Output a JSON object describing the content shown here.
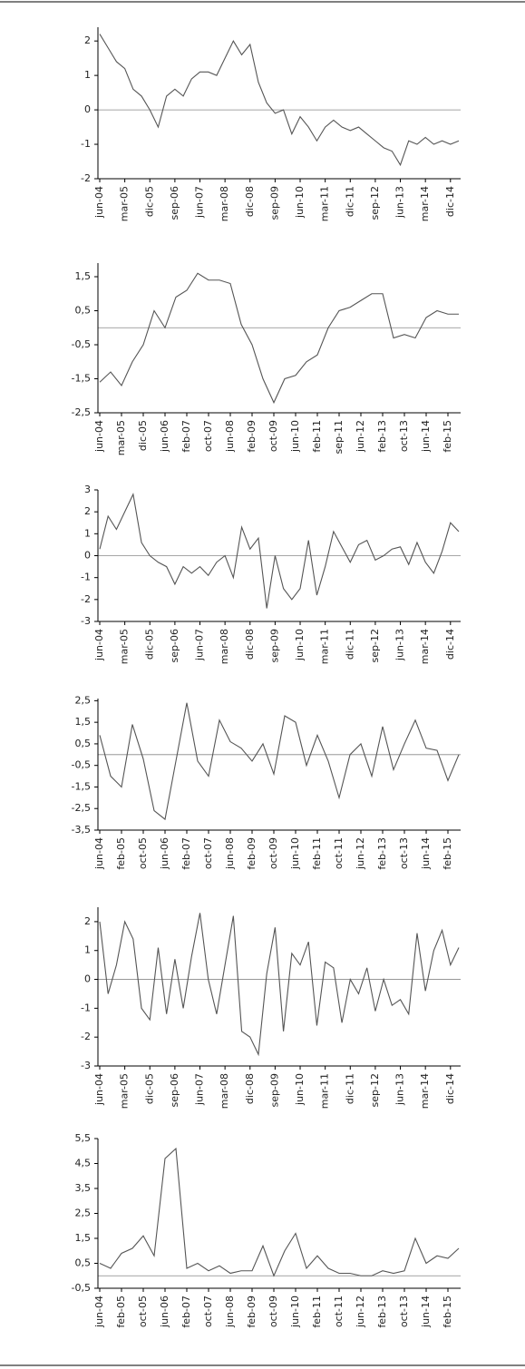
{
  "chart_data": [
    {
      "type": "line",
      "categories": [
        "jun-04",
        null,
        null,
        "mar-05",
        null,
        null,
        "dic-05",
        null,
        null,
        "sep-06",
        null,
        null,
        "jun-07",
        null,
        null,
        "mar-08",
        null,
        null,
        "dic-08",
        null,
        null,
        "sep-09",
        null,
        null,
        "jun-10",
        null,
        null,
        "mar-11",
        null,
        null,
        "dic-11",
        null,
        null,
        "sep-12",
        null,
        null,
        "jun-13",
        null,
        null,
        "mar-14",
        null,
        null,
        "dic-14",
        null
      ],
      "series": [
        {
          "color": "#555555",
          "values": [
            2.2,
            1.8,
            1.4,
            1.2,
            0.6,
            0.4,
            0.0,
            -0.5,
            0.4,
            0.6,
            0.4,
            0.9,
            1.1,
            1.1,
            1.0,
            1.5,
            2.0,
            1.6,
            1.9,
            0.8,
            0.2,
            -0.1,
            0.0,
            -0.7,
            -0.2,
            -0.5,
            -0.9,
            -0.5,
            -0.3,
            -0.5,
            -0.6,
            -0.5,
            -0.7,
            -0.9,
            -1.1,
            -1.2,
            -1.6,
            -0.9,
            -1.0,
            -0.8,
            -1.0,
            -0.9,
            -1.0,
            -0.9
          ]
        }
      ],
      "ylim": [
        -2,
        2.4
      ],
      "yticks": [
        -2,
        -1,
        0,
        1,
        2
      ]
    },
    {
      "type": "line",
      "categories": [
        "jun-04",
        null,
        "mar-05",
        null,
        "dic-05",
        null,
        "jun-06",
        null,
        "feb-07",
        null,
        "oct-07",
        null,
        "jun-08",
        null,
        "feb-09",
        null,
        "oct-09",
        null,
        "jun-10",
        null,
        "feb-11",
        null,
        "sep-11",
        null,
        "jun-12",
        null,
        "feb-13",
        null,
        "oct-13",
        null,
        "jun-14",
        null,
        "feb-15",
        null
      ],
      "series": [
        {
          "color": "#555555",
          "values": [
            -1.6,
            -1.3,
            -1.7,
            -1.0,
            -0.5,
            0.5,
            0.0,
            0.9,
            1.1,
            1.6,
            1.4,
            1.4,
            1.3,
            0.1,
            -0.5,
            -1.5,
            -2.2,
            -1.5,
            -1.4,
            -1.0,
            -0.8,
            0.0,
            0.5,
            0.6,
            0.8,
            1.0,
            1.0,
            -0.3,
            -0.2,
            -0.3,
            0.3,
            0.5,
            0.4,
            0.4
          ]
        }
      ],
      "ylim": [
        -2.5,
        1.9
      ],
      "yticks": [
        {
          "value": -2.5,
          "label": "-2,5"
        },
        {
          "value": -1.5,
          "label": "-1,5"
        },
        {
          "value": -0.5,
          "label": "-0,5"
        },
        {
          "value": 0.5,
          "label": "0,5"
        },
        {
          "value": 1.5,
          "label": "1,5"
        }
      ]
    },
    {
      "type": "line",
      "categories": [
        "jun-04",
        null,
        null,
        "mar-05",
        null,
        null,
        "dic-05",
        null,
        null,
        "sep-06",
        null,
        null,
        "jun-07",
        null,
        null,
        "mar-08",
        null,
        null,
        "dic-08",
        null,
        null,
        "sep-09",
        null,
        null,
        "jun-10",
        null,
        null,
        "mar-11",
        null,
        null,
        "dic-11",
        null,
        null,
        "sep-12",
        null,
        null,
        "jun-13",
        null,
        null,
        "mar-14",
        null,
        null,
        "dic-14",
        null
      ],
      "series": [
        {
          "color": "#555555",
          "values": [
            0.3,
            1.8,
            1.2,
            2.0,
            2.8,
            0.6,
            0.0,
            -0.3,
            -0.5,
            -1.3,
            -0.5,
            -0.8,
            -0.5,
            -0.9,
            -0.3,
            0.0,
            -1.0,
            1.3,
            0.3,
            0.8,
            -2.4,
            0.0,
            -1.5,
            -2.0,
            -1.5,
            0.7,
            -1.8,
            -0.5,
            1.1,
            0.4,
            -0.3,
            0.5,
            0.7,
            -0.2,
            0.0,
            0.3,
            0.4,
            -0.4,
            0.6,
            -0.3,
            -0.8,
            0.2,
            1.5,
            1.1
          ]
        }
      ],
      "ylim": [
        -3,
        3
      ],
      "yticks": [
        -3,
        -2,
        -1,
        0,
        1,
        2,
        3
      ]
    },
    {
      "type": "line",
      "categories": [
        "jun-04",
        null,
        "feb-05",
        null,
        "oct-05",
        null,
        "jun-06",
        null,
        "feb-07",
        null,
        "oct-07",
        null,
        "jun-08",
        null,
        "feb-09",
        null,
        "oct-09",
        null,
        "jun-10",
        null,
        "feb-11",
        null,
        "oct-11",
        null,
        "jun-12",
        null,
        "feb-13",
        null,
        "oct-13",
        null,
        "jun-14",
        null,
        "feb-15",
        null
      ],
      "series": [
        {
          "color": "#555555",
          "values": [
            0.9,
            -1.0,
            -1.5,
            1.4,
            -0.2,
            -2.6,
            -3.0,
            -0.3,
            2.4,
            -0.3,
            -1.0,
            1.6,
            0.6,
            0.3,
            -0.3,
            0.5,
            -0.9,
            1.8,
            1.5,
            -0.5,
            0.9,
            -0.3,
            -2.0,
            0.0,
            0.5,
            -1.0,
            1.3,
            -0.7,
            0.5,
            1.6,
            0.3,
            0.2,
            -1.2,
            0.0
          ]
        }
      ],
      "ylim": [
        -3.5,
        2.6
      ],
      "yticks": [
        {
          "value": -3.5,
          "label": "-3,5"
        },
        {
          "value": -2.5,
          "label": "-2,5"
        },
        {
          "value": -1.5,
          "label": "-1,5"
        },
        {
          "value": -0.5,
          "label": "-0,5"
        },
        {
          "value": 0.5,
          "label": "0,5"
        },
        {
          "value": 1.5,
          "label": "1,5"
        },
        {
          "value": 2.5,
          "label": "2,5"
        }
      ]
    },
    {
      "type": "line",
      "categories": [
        "jun-04",
        null,
        null,
        "mar-05",
        null,
        null,
        "dic-05",
        null,
        null,
        "sep-06",
        null,
        null,
        "jun-07",
        null,
        null,
        "mar-08",
        null,
        null,
        "dic-08",
        null,
        null,
        "sep-09",
        null,
        null,
        "jun-10",
        null,
        null,
        "mar-11",
        null,
        null,
        "dic-11",
        null,
        null,
        "sep-12",
        null,
        null,
        "jun-13",
        null,
        null,
        "mar-14",
        null,
        null,
        "dic-14",
        null
      ],
      "series": [
        {
          "color": "#555555",
          "values": [
            2.0,
            -0.5,
            0.5,
            2.0,
            1.4,
            -1.0,
            -1.4,
            1.1,
            -1.2,
            0.7,
            -1.0,
            0.8,
            2.3,
            0.0,
            -1.2,
            0.5,
            2.2,
            -1.8,
            -2.0,
            -2.6,
            0.2,
            1.8,
            -1.8,
            0.9,
            0.5,
            1.3,
            -1.6,
            0.6,
            0.4,
            -1.5,
            0.0,
            -0.5,
            0.4,
            -1.1,
            0.0,
            -0.9,
            -0.7,
            -1.2,
            1.6,
            -0.4,
            1.0,
            1.7,
            0.5,
            1.1
          ]
        }
      ],
      "ylim": [
        -3,
        2.5
      ],
      "yticks": [
        -3,
        -2,
        -1,
        0,
        1,
        2
      ]
    },
    {
      "type": "line",
      "categories": [
        "jun-04",
        null,
        "feb-05",
        null,
        "oct-05",
        null,
        "jun-06",
        null,
        "feb-07",
        null,
        "oct-07",
        null,
        "jun-08",
        null,
        "feb-09",
        null,
        "oct-09",
        null,
        "jun-10",
        null,
        "feb-11",
        null,
        "oct-11",
        null,
        "jun-12",
        null,
        "feb-13",
        null,
        "oct-13",
        null,
        "jun-14",
        null,
        "feb-15",
        null
      ],
      "series": [
        {
          "color": "#555555",
          "values": [
            0.5,
            0.3,
            0.9,
            1.1,
            1.6,
            0.8,
            4.7,
            5.1,
            0.3,
            0.5,
            0.2,
            0.4,
            0.1,
            0.2,
            0.2,
            1.2,
            0.0,
            1.0,
            1.7,
            0.3,
            0.8,
            0.3,
            0.1,
            0.1,
            0.0,
            0.0,
            0.2,
            0.1,
            0.2,
            1.5,
            0.5,
            0.8,
            0.7,
            1.1
          ]
        }
      ],
      "ylim": [
        -0.5,
        5.5
      ],
      "yticks": [
        {
          "value": -0.5,
          "label": "-0,5"
        },
        {
          "value": 0.5,
          "label": "0,5"
        },
        {
          "value": 1.5,
          "label": "1,5"
        },
        {
          "value": 2.5,
          "label": "2,5"
        },
        {
          "value": 3.5,
          "label": "3,5"
        },
        {
          "value": 4.5,
          "label": "4,5"
        },
        {
          "value": 5.5,
          "label": "5,5"
        }
      ]
    }
  ]
}
